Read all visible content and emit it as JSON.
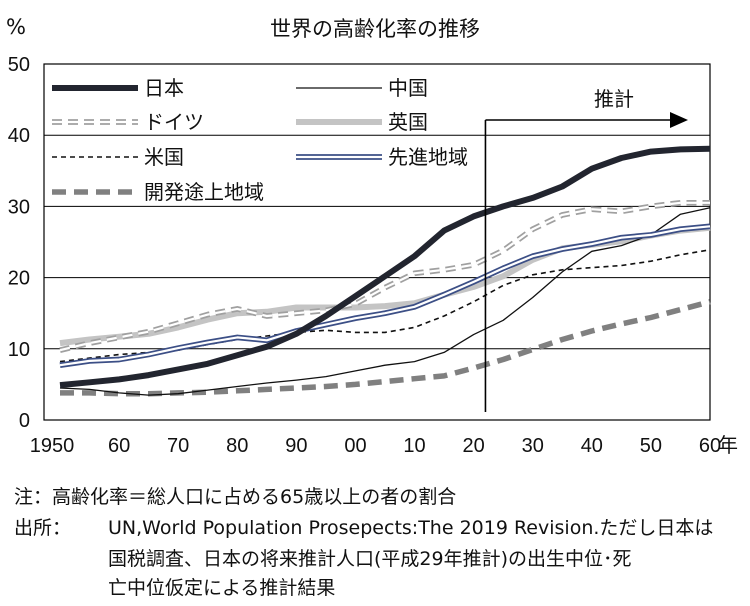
{
  "chart_data": {
    "type": "line",
    "title": "世界の高齢化率の推移",
    "ylabel": "%",
    "xlabel": "年",
    "ylim": [
      0,
      50
    ],
    "xlim": [
      1950,
      2060
    ],
    "yticks": [
      0,
      10,
      20,
      30,
      40,
      50
    ],
    "xtick_values": [
      1950,
      1960,
      1970,
      1980,
      1990,
      2000,
      2010,
      2020,
      2030,
      2040,
      2050,
      2060
    ],
    "xtick_labels": [
      "1950",
      "60",
      "70",
      "80",
      "90",
      "00",
      "10",
      "20",
      "30",
      "40",
      "50",
      "60"
    ],
    "grid": "horizontal",
    "projection": {
      "label": "推計",
      "start_year": 2022
    },
    "x": [
      1950,
      1955,
      1960,
      1965,
      1970,
      1975,
      1980,
      1985,
      1990,
      1995,
      2000,
      2005,
      2010,
      2015,
      2020,
      2025,
      2030,
      2035,
      2040,
      2045,
      2050,
      2055,
      2060
    ],
    "series": [
      {
        "name": "日本",
        "color": "#22252f",
        "width": 6,
        "dash": "none",
        "values": [
          4.9,
          5.3,
          5.7,
          6.3,
          7.1,
          7.9,
          9.1,
          10.3,
          12.1,
          14.6,
          17.4,
          20.2,
          23.0,
          26.6,
          28.6,
          30.0,
          31.2,
          32.8,
          35.3,
          36.8,
          37.7,
          38.0,
          38.1
        ]
      },
      {
        "name": "中国",
        "color": "#111111",
        "width": 1.3,
        "dash": "none",
        "values": [
          4.5,
          4.3,
          3.8,
          3.5,
          3.7,
          4.2,
          4.7,
          5.2,
          5.6,
          6.1,
          6.9,
          7.7,
          8.2,
          9.5,
          12.0,
          14.0,
          17.2,
          20.8,
          23.7,
          24.5,
          26.0,
          28.9,
          29.8
        ]
      },
      {
        "name": "ドイツ",
        "color": "#a0a0a0",
        "width": 2.2,
        "dash": "10,6",
        "outline": true,
        "values": [
          9.8,
          10.8,
          11.6,
          12.4,
          13.6,
          14.8,
          15.6,
          14.6,
          15.0,
          15.4,
          16.3,
          18.6,
          20.6,
          21.1,
          21.8,
          23.8,
          26.8,
          28.8,
          29.6,
          29.3,
          30.0,
          30.5,
          30.5
        ]
      },
      {
        "name": "英国",
        "color": "#c4c4c4",
        "width": 6,
        "dash": "none",
        "values": [
          10.8,
          11.3,
          11.7,
          12.1,
          13.0,
          14.1,
          15.0,
          15.2,
          15.8,
          15.8,
          15.8,
          16.0,
          16.4,
          17.6,
          18.7,
          20.2,
          22.5,
          24.1,
          24.6,
          25.1,
          25.9,
          26.6,
          27.0
        ]
      },
      {
        "name": "米国",
        "color": "#111111",
        "width": 1.6,
        "dash": "5,4",
        "values": [
          8.2,
          8.7,
          9.2,
          9.5,
          9.8,
          10.6,
          11.3,
          11.8,
          12.3,
          12.6,
          12.3,
          12.3,
          13.0,
          14.6,
          16.6,
          18.9,
          20.4,
          21.1,
          21.4,
          21.7,
          22.3,
          23.2,
          23.9
        ]
      },
      {
        "name": "先進地域",
        "color": "#3c4f86",
        "width": 2.2,
        "dash": "none",
        "outline": true,
        "values": [
          7.7,
          8.3,
          8.5,
          9.2,
          10.1,
          10.9,
          11.6,
          11.2,
          12.5,
          13.4,
          14.3,
          15.0,
          15.9,
          17.6,
          19.4,
          21.3,
          23.0,
          24.0,
          24.7,
          25.6,
          26.0,
          26.8,
          27.2
        ]
      },
      {
        "name": "開発途上地域",
        "color": "#808080",
        "width": 5.5,
        "dash": "14,8",
        "values": [
          3.8,
          3.8,
          3.7,
          3.7,
          3.8,
          3.9,
          4.1,
          4.3,
          4.5,
          4.7,
          5.0,
          5.4,
          5.8,
          6.2,
          7.3,
          8.5,
          9.9,
          11.3,
          12.5,
          13.5,
          14.4,
          15.5,
          16.6
        ]
      }
    ]
  },
  "notes": {
    "note_label": "注：",
    "note_text": "高齢化率＝総人口に占める65歳以上の者の割合",
    "source_label": "出所：",
    "source_line1": "UN,World Population Prosepects:The 2019 Revision.ただし日本は",
    "source_line2": "国税調査、日本の将来推計人口(平成29年推計)の出生中位･死",
    "source_line3": "亡中位仮定による推計結果"
  }
}
